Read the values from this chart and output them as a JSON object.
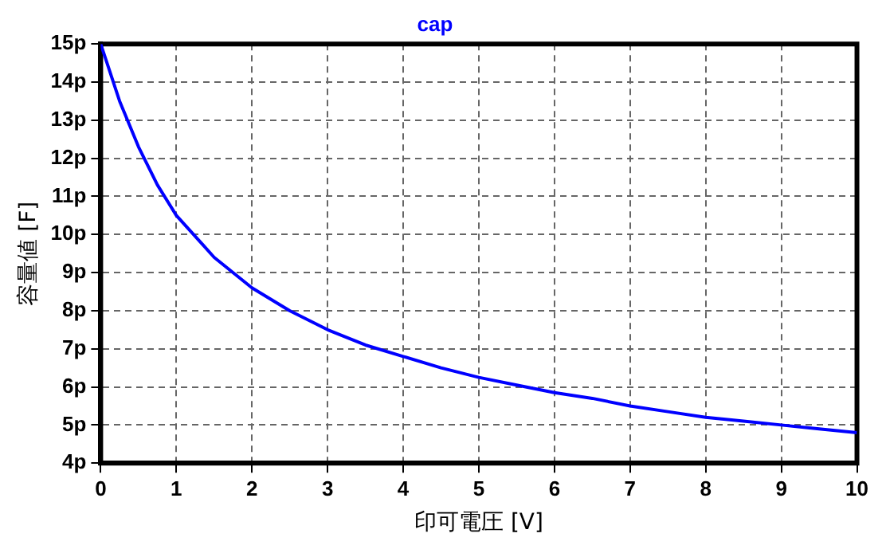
{
  "chart_data": {
    "type": "line",
    "xlabel": "印可電圧 [V]",
    "ylabel": "容量値 [F]",
    "x": [
      0,
      0.25,
      0.5,
      0.75,
      1,
      1.5,
      2,
      2.5,
      3,
      3.5,
      4,
      4.5,
      5,
      5.5,
      6,
      6.5,
      7,
      7.5,
      8,
      8.5,
      9,
      9.5,
      10
    ],
    "series": [
      {
        "name": "cap",
        "color": "#0000ff",
        "values": [
          15,
          13.5,
          12.3,
          11.3,
          10.5,
          9.4,
          8.6,
          8.0,
          7.5,
          7.1,
          6.8,
          6.5,
          6.25,
          6.05,
          5.85,
          5.7,
          5.5,
          5.35,
          5.2,
          5.1,
          5.0,
          4.9,
          4.8
        ]
      }
    ],
    "xlim": [
      0,
      10
    ],
    "xticks": [
      0,
      1,
      2,
      3,
      4,
      5,
      6,
      7,
      8,
      9,
      10
    ],
    "ylim": [
      4,
      15
    ],
    "yticks": [
      {
        "value": 4,
        "label": "4p"
      },
      {
        "value": 5,
        "label": "5p"
      },
      {
        "value": 6,
        "label": "6p"
      },
      {
        "value": 7,
        "label": "7p"
      },
      {
        "value": 8,
        "label": "8p"
      },
      {
        "value": 9,
        "label": "9p"
      },
      {
        "value": 10,
        "label": "10p"
      },
      {
        "value": 11,
        "label": "11p"
      },
      {
        "value": 12,
        "label": "12p"
      },
      {
        "value": 13,
        "label": "13p"
      },
      {
        "value": 14,
        "label": "14p"
      },
      {
        "value": 15,
        "label": "15p"
      }
    ],
    "grid": true,
    "legend": false,
    "marker": "none",
    "line_style": "solid"
  }
}
